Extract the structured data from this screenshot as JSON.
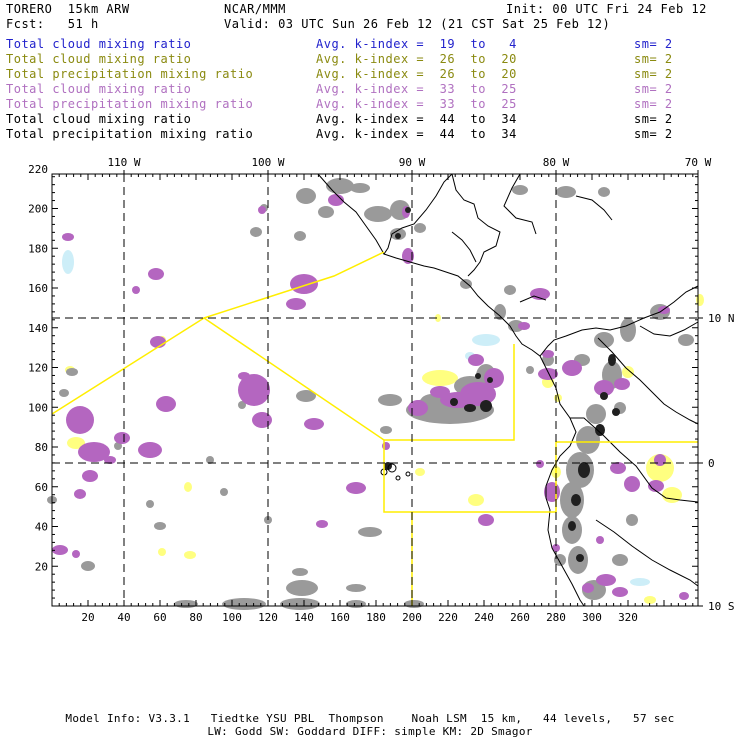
{
  "header": {
    "title_left": "TORERO  15km ARW",
    "title_center": "NCAR/MMM",
    "init": "Init: 00 UTC Fri 24 Feb 12",
    "fcst": "Fcst:   51 h",
    "valid": "Valid: 03 UTC Sun 26 Feb 12 (21 CST Sat 25 Feb 12)"
  },
  "legend_rows": [
    {
      "name": "Total cloud mixing ratio",
      "kindex": "Avg. k-index =  19  to   4",
      "sm": "sm= 2",
      "color": "#2222cc"
    },
    {
      "name": "Total cloud mixing ratio",
      "kindex": "Avg. k-index =  26  to  20",
      "sm": "sm= 2",
      "color": "#8a8a10"
    },
    {
      "name": "Total precipitation mixing ratio",
      "kindex": "Avg. k-index =  26  to  20",
      "sm": "sm= 2",
      "color": "#8a8a10"
    },
    {
      "name": "Total cloud mixing ratio",
      "kindex": "Avg. k-index =  33  to  25",
      "sm": "sm= 2",
      "color": "#b070c0"
    },
    {
      "name": "Total precipitation mixing ratio",
      "kindex": "Avg. k-index =  33  to  25",
      "sm": "sm= 2",
      "color": "#b070c0"
    },
    {
      "name": "Total cloud mixing ratio",
      "kindex": "Avg. k-index =  44  to  34",
      "sm": "sm= 2",
      "color": "#000000"
    },
    {
      "name": "Total precipitation mixing ratio",
      "kindex": "Avg. k-index =  44  to  34",
      "sm": "sm= 2",
      "color": "#000000"
    }
  ],
  "map": {
    "x_ticks": [
      "20",
      "40",
      "60",
      "80",
      "100",
      "120",
      "140",
      "160",
      "180",
      "200",
      "220",
      "240",
      "260",
      "280",
      "300",
      "320"
    ],
    "y_ticks": [
      "20",
      "40",
      "60",
      "80",
      "100",
      "120",
      "140",
      "160",
      "180",
      "200",
      "220"
    ],
    "lon_labels": [
      "110 W",
      "100 W",
      "90 W",
      "80 W",
      "70 W"
    ],
    "lat_labels": [
      "10 N",
      "0",
      "10 S"
    ],
    "colors": {
      "frame": "#000000",
      "coast": "#000000",
      "grid": "#000000",
      "domain_box": "#ffee00",
      "gray_cloud": "#9a9a9a",
      "purple": "#b466c0",
      "yellow": "#ffff80",
      "cyan": "#cdeef8",
      "black_core": "#202020"
    }
  },
  "footer": {
    "line1": "Model Info: V3.3.1   Tiedtke YSU PBL  Thompson    Noah LSM  15 km,   44 levels,   57 sec",
    "line2": "LW: Godd SW: Goddard DIFF: simple KM: 2D Smagor"
  }
}
